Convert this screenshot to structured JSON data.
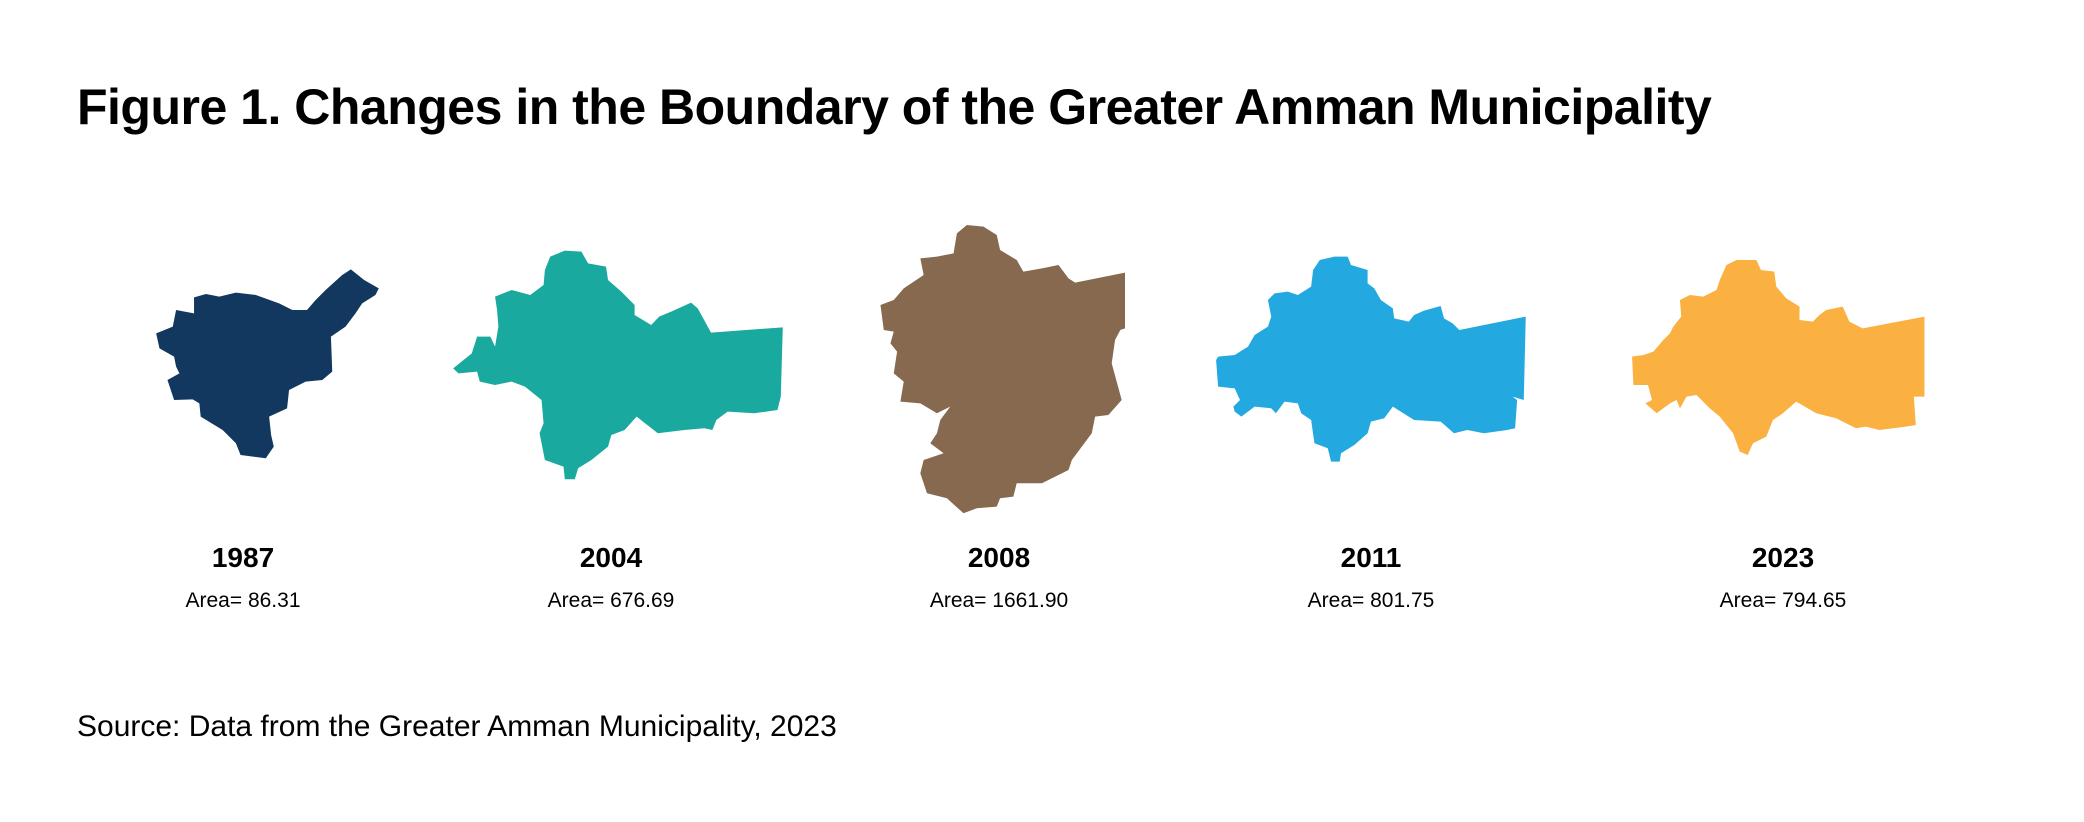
{
  "title": "Figure 1. Changes in the Boundary of the Greater Amman Municipality",
  "maps": [
    {
      "year": "1987",
      "area": "Area= 86.31",
      "color": "#13385f"
    },
    {
      "year": "2004",
      "area": "Area= 676.69",
      "color": "#1aa99f"
    },
    {
      "year": "2008",
      "area": "Area= 1661.90",
      "color": "#87694f"
    },
    {
      "year": "2011",
      "area": "Area= 801.75",
      "color": "#23a9e0"
    },
    {
      "year": "2023",
      "area": "Area= 794.65",
      "color": "#fbb042"
    }
  ],
  "source": "Source: Data from the Greater Amman Municipality, 2023"
}
